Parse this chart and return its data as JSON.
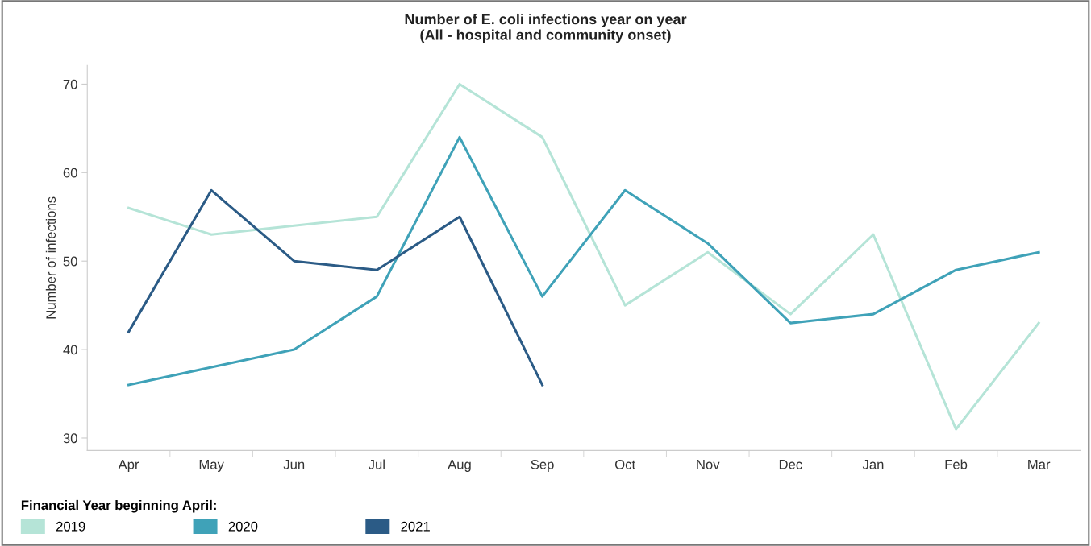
{
  "chart_data": {
    "type": "line",
    "title": "Number of E. coli infections year on year\n(All - hospital and community onset)",
    "ylabel": "Number of infections",
    "categories": [
      "Apr",
      "May",
      "Jun",
      "Jul",
      "Aug",
      "Sep",
      "Oct",
      "Nov",
      "Dec",
      "Jan",
      "Feb",
      "Mar"
    ],
    "series": [
      {
        "name": "2019",
        "color": "#b5e4d7",
        "values": [
          56,
          53,
          54,
          55,
          70,
          64,
          45,
          51,
          44,
          53,
          31,
          43
        ]
      },
      {
        "name": "2020",
        "color": "#3fa2b8",
        "values": [
          36,
          38,
          40,
          46,
          64,
          46,
          58,
          52,
          43,
          44,
          49,
          51
        ]
      },
      {
        "name": "2021",
        "color": "#2b5b86",
        "values": [
          42,
          58,
          50,
          49,
          55,
          36,
          null,
          null,
          null,
          null,
          null,
          null
        ]
      }
    ],
    "legend_title": "Financial Year beginning April:",
    "legend": "bottom",
    "ylim": [
      28.6,
      72.1
    ],
    "yticks": [
      30,
      40,
      50,
      60,
      70
    ],
    "grid": false,
    "marker": "none",
    "line_style": "solid"
  }
}
